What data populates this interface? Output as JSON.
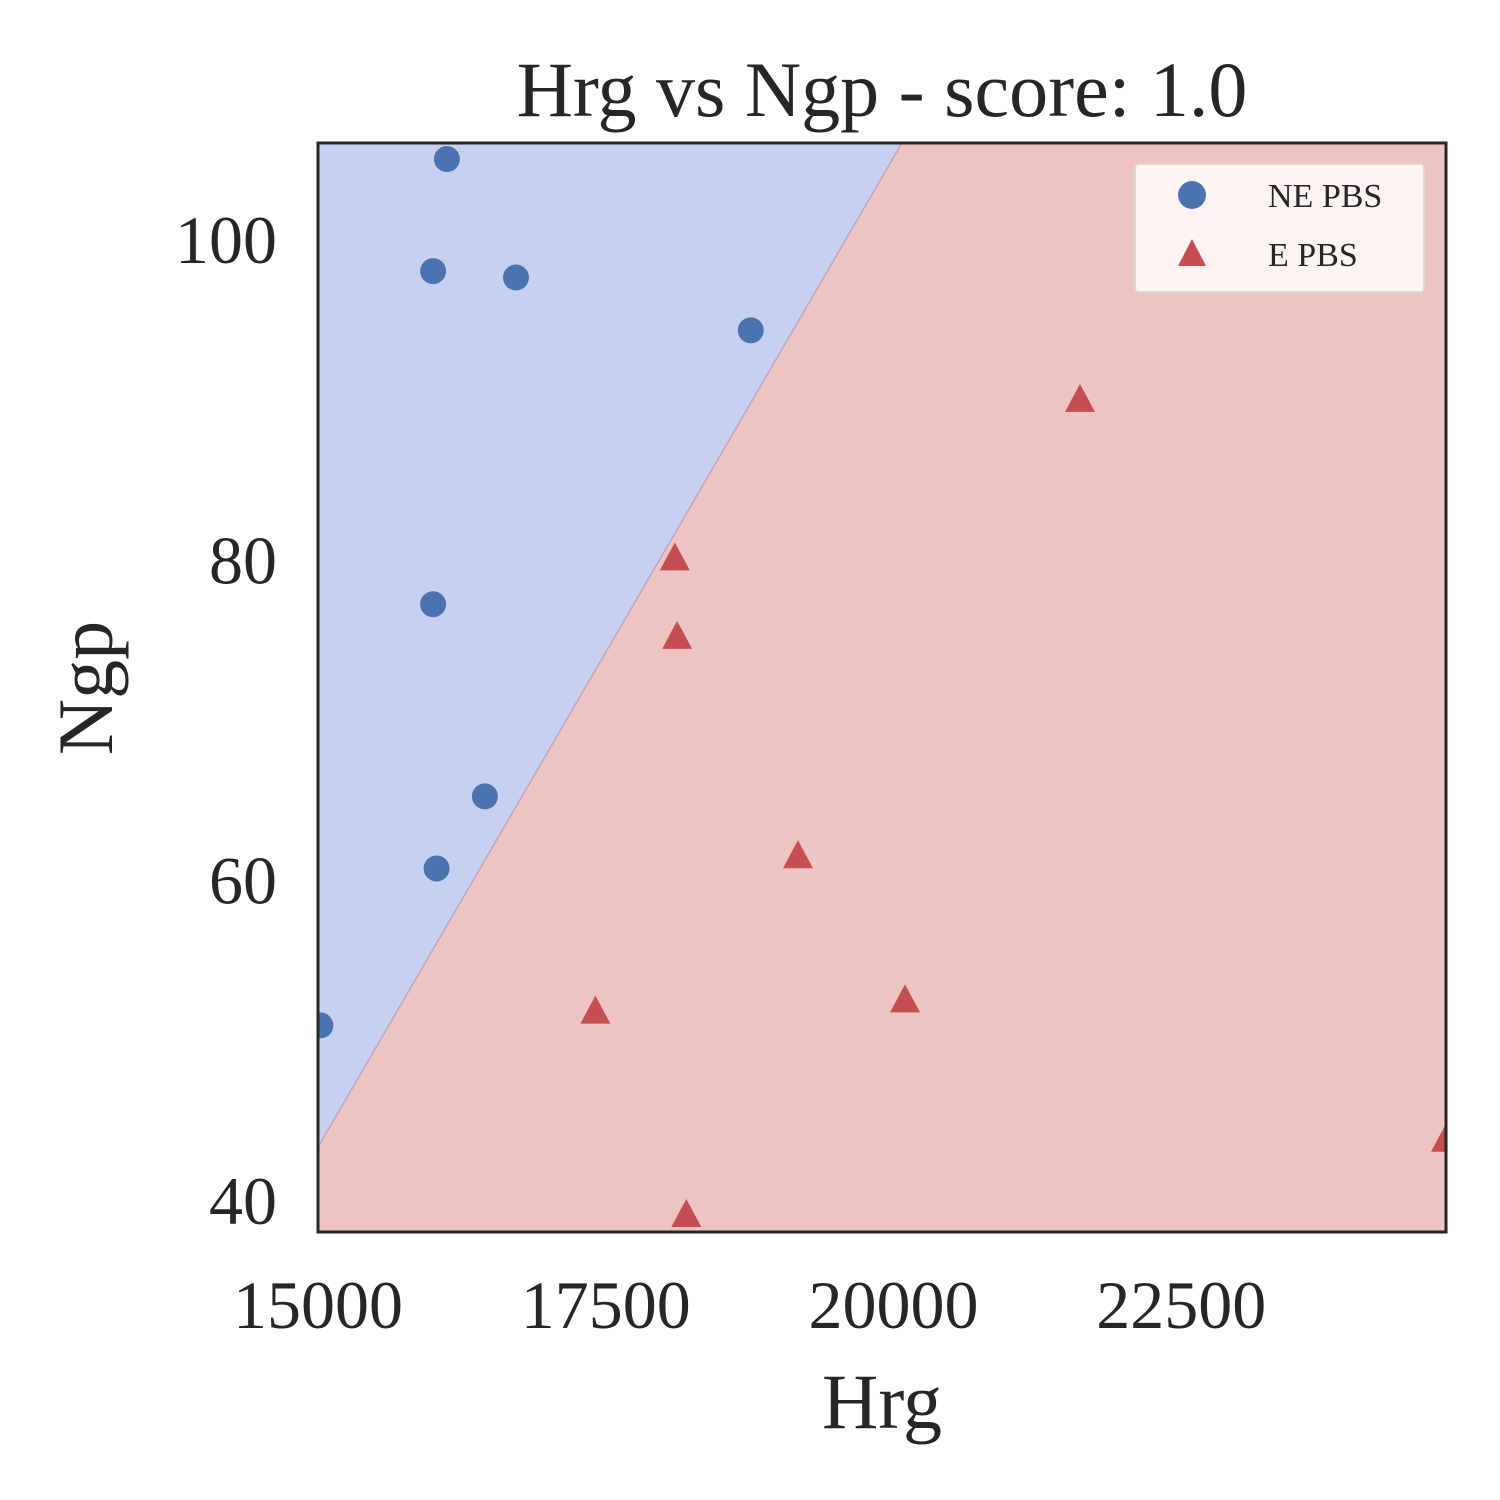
{
  "chart_data": {
    "type": "scatter",
    "title": "Hrg vs Ngp - score: 1.0",
    "xlabel": "Hrg",
    "ylabel": "Ngp",
    "xlim": [
      15000,
      24800
    ],
    "ylim": [
      38,
      106
    ],
    "xticks": [
      15000,
      17500,
      20000,
      22500
    ],
    "yticks": [
      40,
      60,
      80,
      100
    ],
    "grid": false,
    "legend_position": "top-right",
    "decision_boundary": {
      "points": [
        [
          15000,
          43.3
        ],
        [
          20000,
          105.1
        ]
      ],
      "left_region": "NE PBS",
      "right_region": "E PBS",
      "left_color": "#c8d0f2",
      "right_color": "#eec4c3"
    },
    "series": [
      {
        "name": "NE PBS",
        "marker": "circle",
        "color": "#4c72b0",
        "points": [
          [
            16120,
            105
          ],
          [
            16000,
            98
          ],
          [
            16720,
            97.6
          ],
          [
            18760,
            94.3
          ],
          [
            16000,
            77.2
          ],
          [
            16450,
            65.2
          ],
          [
            16030,
            60.7
          ],
          [
            15020,
            50.9
          ]
        ]
      },
      {
        "name": "E PBS",
        "marker": "triangle",
        "color": "#c44e52",
        "points": [
          [
            21620,
            89.9
          ],
          [
            18100,
            80
          ],
          [
            18120,
            75.1
          ],
          [
            19170,
            61.4
          ],
          [
            17410,
            51.7
          ],
          [
            20100,
            52.4
          ],
          [
            18200,
            39
          ],
          [
            24800,
            43.7
          ]
        ]
      }
    ]
  }
}
